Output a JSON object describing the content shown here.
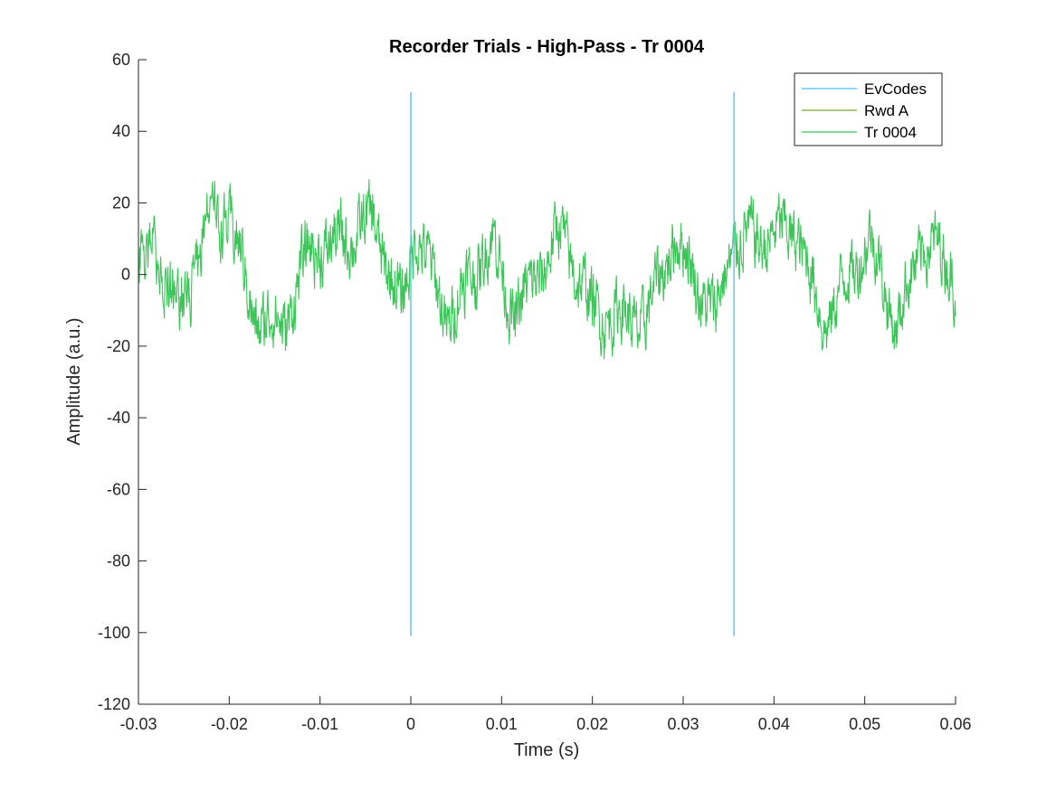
{
  "chart_data": {
    "type": "line",
    "title": "Recorder Trials - High-Pass - Tr 0004",
    "xlabel": "Time (s)",
    "ylabel": "Amplitude (a.u.)",
    "xlim": [
      -0.03,
      0.06
    ],
    "ylim": [
      -120,
      60
    ],
    "xticks": [
      -0.03,
      -0.02,
      -0.01,
      0,
      0.01,
      0.02,
      0.03,
      0.04,
      0.05,
      0.06
    ],
    "xtick_labels": [
      "-0.03",
      "-0.02",
      "-0.01",
      "0",
      "0.01",
      "0.02",
      "0.03",
      "0.04",
      "0.05",
      "0.06"
    ],
    "yticks": [
      60,
      40,
      20,
      0,
      -20,
      -40,
      -60,
      -80,
      -100,
      -120
    ],
    "ytick_labels": [
      "60",
      "40",
      "20",
      "0",
      "-20",
      "-40",
      "-60",
      "-80",
      "-100",
      "-120"
    ],
    "grid": false,
    "legend_position": "top-right",
    "series": [
      {
        "name": "EvCodes",
        "color": "#4DBEEE",
        "segments": [
          {
            "x": [
              0,
              0
            ],
            "y": [
              -101,
              51
            ]
          },
          {
            "x": [
              0.0356,
              0.0356
            ],
            "y": [
              -101,
              51
            ]
          }
        ]
      },
      {
        "name": "Rwd A",
        "color": "#77AC30",
        "segments": []
      },
      {
        "name": "Tr 0004",
        "color": "#3DC55A",
        "x_range": [
          -0.03,
          0.06
        ],
        "y_range_approx": [
          -27,
          31
        ],
        "envelope_x": [
          -0.03,
          -0.028,
          -0.0255,
          -0.0225,
          -0.02,
          -0.0172,
          -0.014,
          -0.011,
          -0.0085,
          -0.0042,
          -0.001,
          0.0005,
          0.004,
          0.009,
          0.0115,
          0.0165,
          0.02,
          0.0258,
          0.029,
          0.0335,
          0.0355,
          0.0395,
          0.0425,
          0.0455,
          0.0505,
          0.0535,
          0.0565,
          0.06
        ],
        "envelope_y": [
          5,
          16,
          -21,
          22,
          31,
          -23,
          -26,
          14,
          14,
          27,
          -18,
          24,
          -23,
          18,
          -22,
          22,
          -18,
          -24,
          20,
          -22,
          17,
          19,
          23,
          -25,
          19,
          -26,
          19,
          0
        ]
      }
    ]
  }
}
